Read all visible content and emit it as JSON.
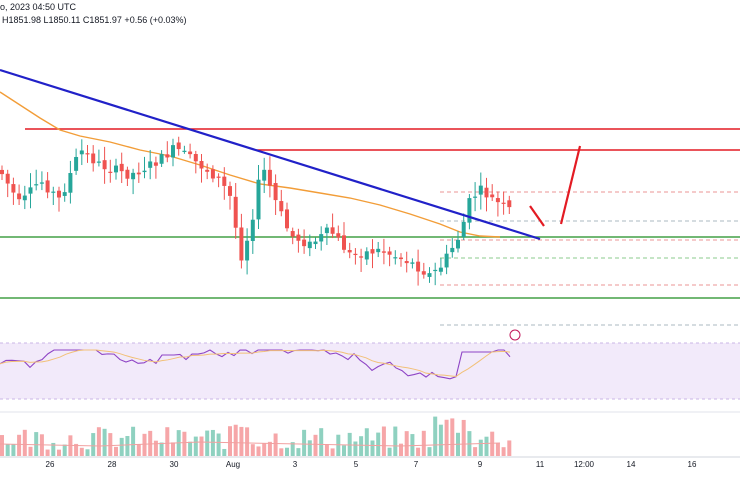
{
  "header": {
    "line1": "o, 2023 04:50 UTC",
    "ohlc": "H1851.98  L1850.11  C1851.97  +0.56 (+0.03%)",
    "change_color": "#089981"
  },
  "chart_data": {
    "type": "candlestick",
    "title": "",
    "x_ticks": [
      "26",
      "28",
      "30",
      "Aug",
      "3",
      "5",
      "7",
      "9",
      "11",
      "12:00",
      "14",
      "16"
    ],
    "colors": {
      "up": "#26a69a",
      "down": "#ef5350",
      "trend_line": "#2121c8",
      "resistance": "#e31b23",
      "support": "#43a047",
      "sma": "#f29d38",
      "rsi_line": "#8e44c5",
      "rsi_band": "#e8d9f5",
      "forecast_arrow": "#e31b23",
      "vol_up": "#8fd1c0",
      "vol_down": "#f6a6a8"
    },
    "panels": [
      "price",
      "rsi",
      "volume"
    ],
    "price_panel": {
      "candles": "OHLC candlesticks, about 90 bars",
      "lines": [
        "descending trend line",
        "horizontal resistance",
        "horizontal support levels",
        "moving average"
      ],
      "forecast": "arrow pointing upward after a dip to the trend line"
    },
    "rsi_panel": {
      "band": "overbought/oversold zone"
    },
    "volume_panel": {
      "bars": "colored volume columns with average line"
    }
  }
}
